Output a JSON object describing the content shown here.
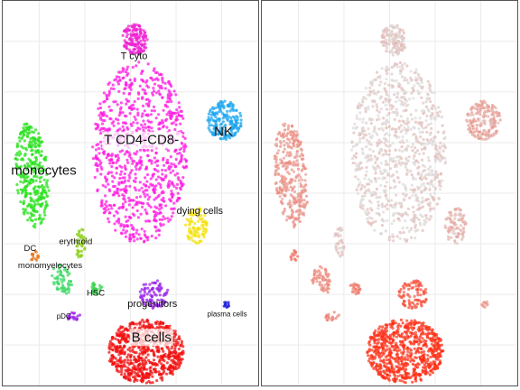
{
  "chart_data": [
    {
      "type": "scatter",
      "panel": "left",
      "title": "",
      "xlabel": "",
      "ylabel": "",
      "grid": true,
      "legend": "none",
      "x_gridlines": [
        -10,
        -5,
        0,
        5,
        10
      ],
      "y_gridlines": [
        -15,
        -10,
        -5,
        0,
        5,
        10,
        15
      ],
      "xlim": [
        -14,
        14
      ],
      "ylim": [
        -19,
        19
      ],
      "clusters": [
        {
          "name": "T cyto",
          "label": "T cyto",
          "color": "#f01fd3",
          "center": [
            0.5,
            15.2
          ],
          "label_pos": [
            0.4,
            13.5
          ],
          "label_size": "medium",
          "highlight": false
        },
        {
          "name": "T CD4-CD8-",
          "label": "T CD4-CD8-",
          "color": "#ff19e1",
          "center": [
            1.0,
            4.0
          ],
          "label_pos": [
            1.2,
            5.2
          ],
          "label_size": "large",
          "highlight": true
        },
        {
          "name": "NK",
          "label": "NK",
          "color": "#1ea6f0",
          "center": [
            10.3,
            7.2
          ],
          "label_pos": [
            10.2,
            6.0
          ],
          "label_size": "large",
          "highlight": false
        },
        {
          "name": "monocytes",
          "label": "monocytes",
          "color": "#28e21c",
          "center": [
            -10.8,
            1.8
          ],
          "label_pos": [
            -9.5,
            2.2
          ],
          "label_size": "large",
          "highlight": false
        },
        {
          "name": "dying cells",
          "label": "dying cells",
          "color": "#f4e10b",
          "center": [
            7.2,
            -3.2
          ],
          "label_pos": [
            7.6,
            -1.8
          ],
          "label_size": "medium",
          "highlight": false
        },
        {
          "name": "erythroid",
          "label": "erythroid",
          "color": "#8fcf19",
          "center": [
            -5.5,
            -4.8
          ],
          "label_pos": [
            -6.0,
            -4.8
          ],
          "label_size": "small",
          "highlight": false
        },
        {
          "name": "DC",
          "label": "DC",
          "color": "#e7771d",
          "center": [
            -10.5,
            -6.2
          ],
          "label_pos": [
            -11.0,
            -5.5
          ],
          "label_size": "small",
          "highlight": false
        },
        {
          "name": "monomyelocytes",
          "label": "monomyelocytes",
          "color": "#3cd865",
          "center": [
            -7.5,
            -8.5
          ],
          "label_pos": [
            -8.8,
            -7.2
          ],
          "label_size": "small",
          "highlight": false
        },
        {
          "name": "HSC",
          "label": "HSC",
          "color": "#38d14f",
          "center": [
            -3.8,
            -9.4
          ],
          "label_pos": [
            -3.8,
            -9.9
          ],
          "label_size": "small",
          "highlight": false
        },
        {
          "name": "pDC",
          "label": "pDC",
          "color": "#9a22e8",
          "center": [
            -6.3,
            -12.2
          ],
          "label_pos": [
            -7.3,
            -12.2
          ],
          "label_size": "tiny",
          "highlight": false
        },
        {
          "name": "progenitors",
          "label": "progenitors",
          "color": "#9a25ea",
          "center": [
            2.6,
            -10.0
          ],
          "label_pos": [
            2.4,
            -11.0
          ],
          "label_size": "medium",
          "highlight": false
        },
        {
          "name": "plasma cells",
          "label": "plasma cells",
          "color": "#1515d8",
          "center": [
            10.5,
            -11.0
          ],
          "label_pos": [
            10.6,
            -12.0
          ],
          "label_size": "tiny",
          "highlight": false
        },
        {
          "name": "B cells",
          "label": "B cells",
          "color": "#f21010",
          "center": [
            1.7,
            -15.6
          ],
          "label_pos": [
            2.3,
            -14.3
          ],
          "label_size": "large",
          "highlight": true
        }
      ]
    },
    {
      "type": "scatter",
      "panel": "right",
      "title": "",
      "xlabel": "",
      "ylabel": "",
      "grid": true,
      "legend": "none",
      "color_scale": {
        "low": "#dddddd",
        "high": "#ff2a10"
      },
      "x_gridlines": [
        -10,
        -5,
        0,
        5,
        10
      ],
      "y_gridlines": [
        -15,
        -10,
        -5,
        0,
        5,
        10,
        15
      ],
      "xlim": [
        -14,
        14
      ],
      "ylim": [
        -19,
        19
      ],
      "clusters": [
        {
          "name": "T cyto",
          "level": 0.12
        },
        {
          "name": "T CD4-CD8-",
          "level": 0.08
        },
        {
          "name": "NK",
          "level": 0.3
        },
        {
          "name": "monocytes",
          "level": 0.4
        },
        {
          "name": "dying cells",
          "level": 0.2
        },
        {
          "name": "erythroid",
          "level": 0.1
        },
        {
          "name": "DC",
          "level": 0.6
        },
        {
          "name": "monomyelocytes",
          "level": 0.45
        },
        {
          "name": "HSC",
          "level": 0.5
        },
        {
          "name": "pDC",
          "level": 0.5
        },
        {
          "name": "progenitors",
          "level": 0.75
        },
        {
          "name": "plasma cells",
          "level": 0.35
        },
        {
          "name": "B cells",
          "level": 0.95
        }
      ]
    }
  ]
}
